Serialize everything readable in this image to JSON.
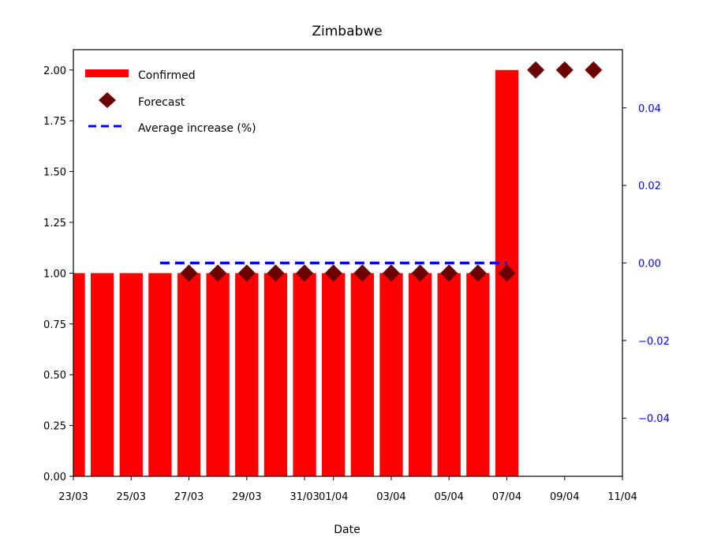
{
  "chart_data": {
    "type": "bar",
    "title": "Zimbabwe",
    "xlabel": "Date",
    "ylabel": "",
    "x_tick_labels": [
      "23/03",
      "25/03",
      "27/03",
      "29/03",
      "31/03",
      "01/04",
      "03/04",
      "05/04",
      "07/04",
      "09/04",
      "11/04"
    ],
    "x_tick_days": [
      0,
      2,
      4,
      6,
      8,
      9,
      11,
      13,
      15,
      17,
      19
    ],
    "xlim_days": [
      0,
      19
    ],
    "ylim": [
      0,
      2.1
    ],
    "y_ticks": [
      "0.00",
      "0.25",
      "0.50",
      "0.75",
      "1.00",
      "1.25",
      "1.50",
      "1.75",
      "2.00"
    ],
    "y2lim": [
      -0.055,
      0.055
    ],
    "y2_ticks": [
      "−0.04",
      "−0.02",
      "0.00",
      "0.02",
      "0.04"
    ],
    "y2_tick_values": [
      -0.04,
      -0.02,
      0.0,
      0.02,
      0.04
    ],
    "legend_position": "upper-left",
    "series": [
      {
        "name": "Confirmed",
        "kind": "bar",
        "color": "#ff0000",
        "x": [
          "23/03",
          "24/03",
          "25/03",
          "26/03",
          "27/03",
          "28/03",
          "29/03",
          "30/03",
          "31/03",
          "01/04",
          "02/04",
          "03/04",
          "04/04",
          "05/04",
          "06/04",
          "07/04"
        ],
        "x_days": [
          0,
          1,
          2,
          3,
          4,
          5,
          6,
          7,
          8,
          9,
          10,
          11,
          12,
          13,
          14,
          15
        ],
        "values": [
          1,
          1,
          1,
          1,
          1,
          1,
          1,
          1,
          1,
          1,
          1,
          1,
          1,
          1,
          1,
          2
        ]
      },
      {
        "name": "Forecast",
        "kind": "scatter",
        "marker": "diamond",
        "color": "#6b0000",
        "x": [
          "27/03",
          "28/03",
          "29/03",
          "30/03",
          "31/03",
          "01/04",
          "02/04",
          "03/04",
          "04/04",
          "05/04",
          "06/04",
          "07/04",
          "08/04",
          "09/04",
          "10/04"
        ],
        "x_days": [
          4,
          5,
          6,
          7,
          8,
          9,
          10,
          11,
          12,
          13,
          14,
          15,
          16,
          17,
          18
        ],
        "values": [
          1,
          1,
          1,
          1,
          1,
          1,
          1,
          1,
          1,
          1,
          1,
          1,
          2,
          2,
          2
        ]
      },
      {
        "name": "Average increase (%)",
        "kind": "line",
        "style": "dashed",
        "color": "#0000ff",
        "axis": "right",
        "x_days": [
          3,
          15
        ],
        "values": [
          0.0,
          0.0
        ]
      }
    ]
  }
}
